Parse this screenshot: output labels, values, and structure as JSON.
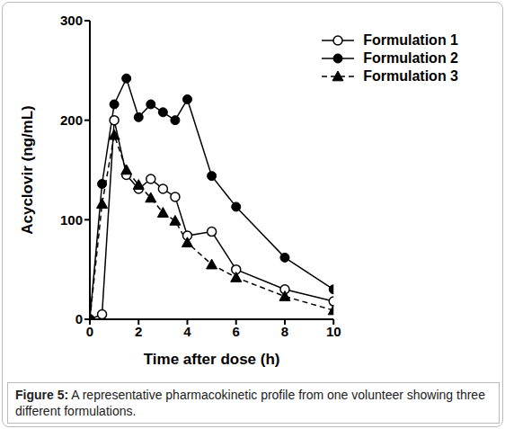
{
  "chart_data": {
    "type": "line",
    "title": "Figure 5: A representative pharmacokinetic profile from one volunteer showing three different formulations.",
    "x_label": "Time after dose (h)",
    "y_label": "Acyclovir (ng/mL)",
    "x": [
      0,
      0.5,
      1,
      1.5,
      2,
      2.5,
      3,
      3.5,
      4,
      5,
      6,
      8,
      10
    ],
    "xlim": [
      0,
      10
    ],
    "xticks": [
      0,
      2,
      4,
      6,
      8,
      10
    ],
    "ylim": [
      0,
      300
    ],
    "yticks": [
      0,
      100,
      200,
      300
    ],
    "grid": false,
    "legend": "upper right",
    "series": [
      {
        "name": "Formulation 1",
        "color": "#000000",
        "marker": "circle-open",
        "line_style": "solid",
        "values": [
          0,
          5,
          200,
          145,
          131,
          141,
          131,
          123,
          84,
          88,
          50,
          30,
          18
        ]
      },
      {
        "name": "Formulation 2",
        "color": "#000000",
        "marker": "circle",
        "line_style": "solid",
        "values": [
          0,
          136,
          216,
          242,
          203,
          216,
          208,
          200,
          221,
          144,
          113,
          62,
          30
        ]
      },
      {
        "name": "Formulation 3",
        "color": "#000000",
        "marker": "triangle",
        "line_style": "dashed",
        "values": [
          0,
          116,
          185,
          150,
          135,
          122,
          107,
          99,
          77,
          55,
          42,
          23,
          9
        ]
      }
    ]
  }
}
